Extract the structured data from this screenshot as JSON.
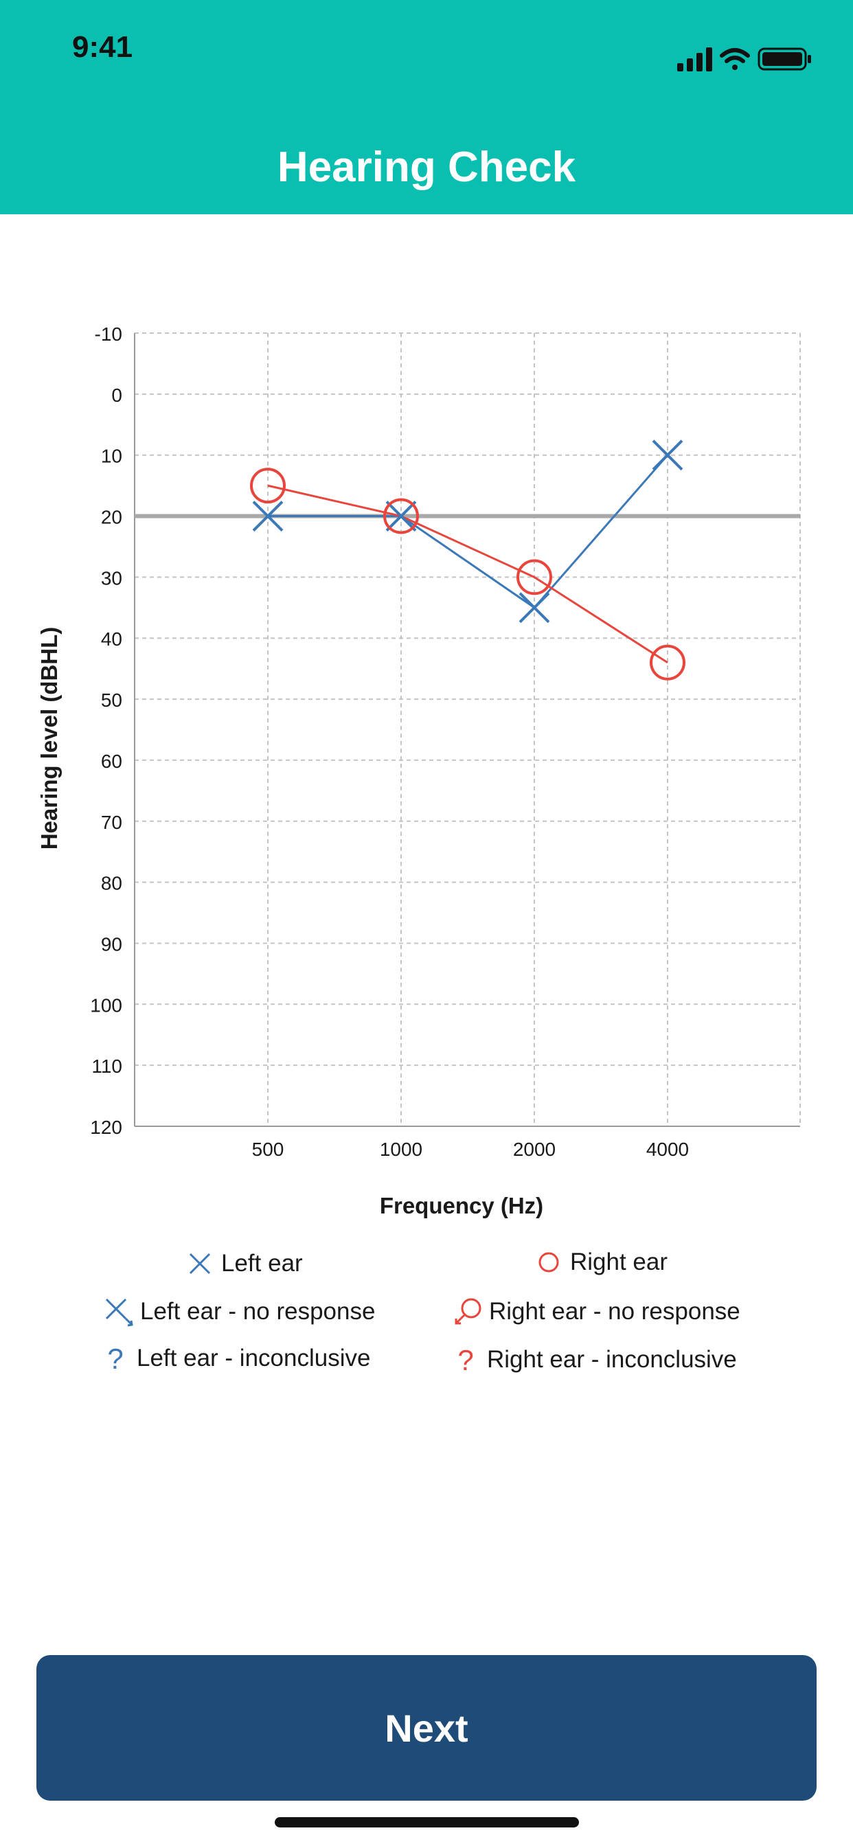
{
  "status_bar": {
    "time": "9:41",
    "icons": [
      "cellular-signal-icon",
      "wifi-icon",
      "battery-icon"
    ]
  },
  "header": {
    "title": "Hearing Check",
    "background_color": "#0bbfb0"
  },
  "chart_data": {
    "type": "line",
    "xlabel": "Frequency (Hz)",
    "ylabel": "Hearing level (dBHL)",
    "x_categories": [
      "500",
      "1000",
      "2000",
      "4000"
    ],
    "y_ticks": [
      -10,
      0,
      10,
      20,
      30,
      40,
      50,
      60,
      70,
      80,
      90,
      100,
      110,
      120
    ],
    "ylim": [
      -10,
      120
    ],
    "y_inverted": true,
    "grid": true,
    "reference_line": 20,
    "series": [
      {
        "name": "Left ear",
        "marker": "x",
        "color": "#3b78b8",
        "values": [
          20,
          20,
          35,
          10
        ]
      },
      {
        "name": "Right ear",
        "marker": "circle",
        "color": "#e8453c",
        "values": [
          15,
          20,
          30,
          44
        ]
      }
    ]
  },
  "legend": [
    {
      "symbol": "x",
      "color": "#3b78b8",
      "label": "Left ear"
    },
    {
      "symbol": "circle",
      "color": "#e8453c",
      "label": "Right ear"
    },
    {
      "symbol": "x-arrow",
      "color": "#3b78b8",
      "label": "Left ear - no response"
    },
    {
      "symbol": "circle-arrow",
      "color": "#e8453c",
      "label": "Right ear - no response"
    },
    {
      "symbol": "question",
      "color": "#3b78b8",
      "label": "Left ear - inconclusive"
    },
    {
      "symbol": "question",
      "color": "#e8453c",
      "label": "Right ear - inconclusive"
    }
  ],
  "footer": {
    "next_label": "Next",
    "button_color": "#1e4b77"
  }
}
